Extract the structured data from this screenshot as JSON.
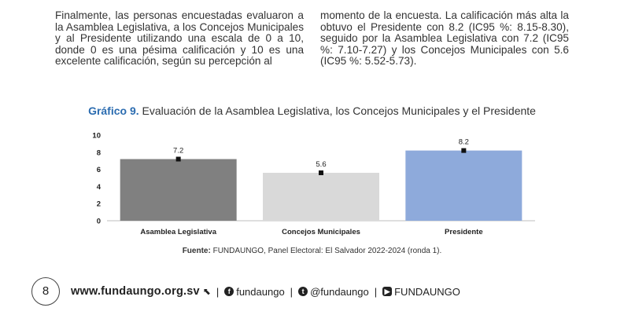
{
  "body": {
    "left_paragraph": "Finalmente, las personas encuestadas evaluaron a la Asamblea Legislativa, a los Concejos Municipales y al Presidente utilizando una escala de 0 a 10, donde 0 es una pésima calificación y 10 es una excelente calificación, según su percepción al",
    "right_paragraph": "momento de la encuesta. La calificación más alta la obtuvo el Presidente con 8.2 (IC95 %: 8.15-8.30), seguido por la Asamblea Legislativa con 7.2 (IC95 %: 7.10-7.27) y los Concejos Municipales con 5.6 (IC95 %: 5.52-5.73)."
  },
  "chart_title": {
    "lead": "Gráfico 9.",
    "text": " Evaluación de la Asamblea Legislativa, los Concejos Municipales y el Presidente"
  },
  "chart_data": {
    "type": "bar",
    "title": "Gráfico 9. Evaluación de la Asamblea Legislativa, los Concejos Municipales y el Presidente",
    "categories": [
      "Asamblea Legislativa",
      "Concejos Municipales",
      "Presidente"
    ],
    "values": [
      7.2,
      5.6,
      8.2
    ],
    "data_labels": [
      "7.2",
      "5.6",
      "8.2"
    ],
    "colors": [
      "#808080",
      "#d9d9d9",
      "#8eaadb"
    ],
    "yticks": [
      "0",
      "2",
      "4",
      "6",
      "8",
      "10"
    ],
    "ylim": [
      0,
      10
    ],
    "xlabel": "",
    "ylabel": "",
    "grid": false,
    "legend": "none"
  },
  "source": {
    "label": "Fuente:",
    "text": " FUNDAUNGO, Panel Electoral: El Salvador 2022-2024 (ronda 1)."
  },
  "footer": {
    "page_number": "8",
    "url": "www.fundaungo.org.sv",
    "facebook": "fundaungo",
    "twitter": "@fundaungo",
    "youtube": "FUNDAUNGO",
    "separator": "|"
  }
}
